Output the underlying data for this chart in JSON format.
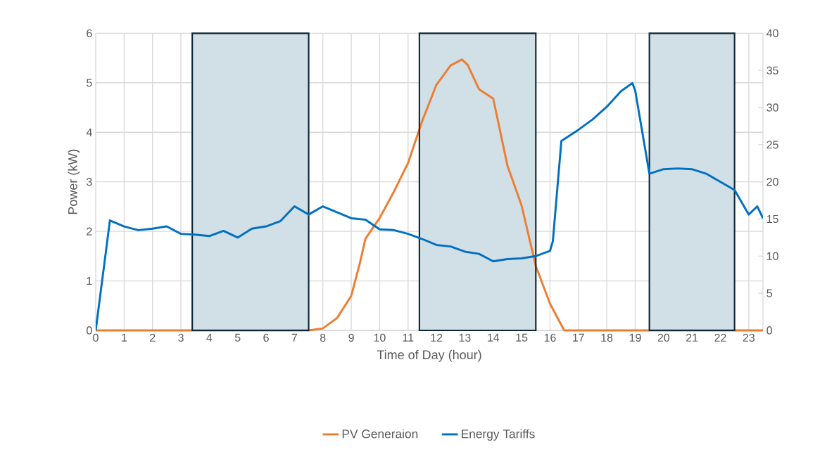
{
  "chart_data": {
    "type": "line",
    "xlabel": "Time of Day (hour)",
    "ylabel": "Power (kW)",
    "xlim": [
      0,
      23.5
    ],
    "xticks": [
      0,
      1,
      2,
      3,
      4,
      5,
      6,
      7,
      8,
      9,
      10,
      11,
      12,
      13,
      14,
      15,
      16,
      17,
      18,
      19,
      20,
      21,
      22,
      23
    ],
    "ylim": [
      0,
      6
    ],
    "yticks": [
      0,
      1,
      2,
      3,
      4,
      5,
      6
    ],
    "y2lim": [
      0,
      40
    ],
    "y2ticks": [
      0,
      5,
      10,
      15,
      20,
      25,
      30,
      35,
      40
    ],
    "grid": true,
    "legend": "bottom",
    "bands": [
      {
        "axis": "x",
        "from": 3.4,
        "to": 7.5,
        "color": "#d1dfe7"
      },
      {
        "axis": "x",
        "from": 11.4,
        "to": 15.5,
        "color": "#d1dfe7"
      },
      {
        "axis": "x",
        "from": 19.5,
        "to": 22.5,
        "color": "#d1dfe7"
      }
    ],
    "series": [
      {
        "name": "PV Generaion",
        "color": "#ed7d31",
        "x": [
          0,
          7.5,
          8,
          8.5,
          9,
          9.3,
          9.5,
          10,
          10.5,
          11,
          11.5,
          12,
          12.5,
          12.9,
          13.1,
          13.5,
          14,
          14.5,
          15,
          15.5,
          16,
          16.5,
          23.5
        ],
        "values": [
          0,
          0,
          0.04,
          0.25,
          0.7,
          1.35,
          1.85,
          2.27,
          2.8,
          3.38,
          4.23,
          4.96,
          5.35,
          5.47,
          5.36,
          4.87,
          4.68,
          3.33,
          2.52,
          1.3,
          0.54,
          0,
          0
        ]
      },
      {
        "name": "Energy Tariffs",
        "color": "#0070c0",
        "axis": "y2",
        "x": [
          0,
          0.5,
          1,
          1.5,
          2,
          2.5,
          3,
          3.5,
          4,
          4.5,
          5,
          5.5,
          6,
          6.5,
          7,
          7.5,
          8,
          8.5,
          9,
          9.5,
          10,
          10.5,
          11,
          11.5,
          12,
          12.5,
          13,
          13.5,
          14,
          14.5,
          15,
          15.5,
          16,
          16.1,
          16.4,
          17,
          17.5,
          18,
          18.5,
          18.9,
          19,
          19.5,
          20,
          20.5,
          21,
          21.5,
          22,
          22.5,
          23,
          23.3,
          23.5
        ],
        "values": [
          0,
          14.8,
          14,
          13.5,
          13.7,
          14,
          13,
          12.9,
          12.7,
          13.4,
          12.5,
          13.7,
          14,
          14.7,
          16.7,
          15.6,
          16.7,
          15.9,
          15.1,
          14.9,
          13.6,
          13.5,
          13,
          12.3,
          11.5,
          11.3,
          10.6,
          10.3,
          9.3,
          9.6,
          9.7,
          10,
          10.7,
          12,
          25.5,
          27,
          28.4,
          30.1,
          32.2,
          33.3,
          32.3,
          21.1,
          21.7,
          21.8,
          21.7,
          21.1,
          20,
          18.9,
          15.6,
          16.7,
          15.1
        ]
      }
    ]
  }
}
